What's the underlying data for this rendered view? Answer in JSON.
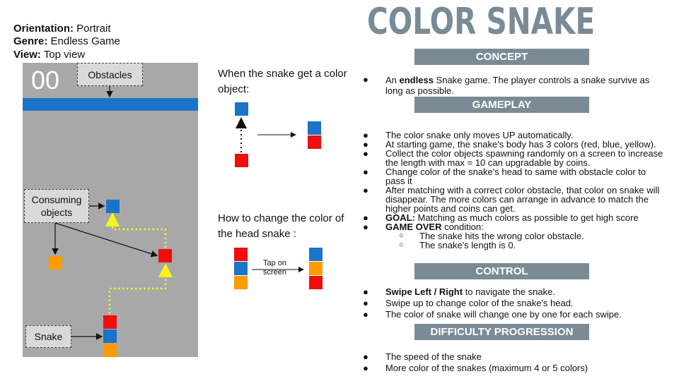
{
  "info": {
    "orientation_label": "Orientation:",
    "orientation_value": "Portrait",
    "genre_label": "Genre:",
    "genre_value": "Endless Game",
    "view_label": "View:",
    "view_value": "Top view"
  },
  "game": {
    "score": "00",
    "obstacles_label": "Obstacles",
    "consuming_label": "Consuming objects",
    "snake_label": "Snake"
  },
  "middle": {
    "color_object_text": "When the snake get a color object:",
    "change_color_text": "How to change the color of the head snake :",
    "tap_label": "Tap on screen"
  },
  "title": "COLOR SNAKE",
  "sections": {
    "concept": {
      "heading": "CONCEPT",
      "b1_pre": "An ",
      "b1_bold": "endless",
      "b1_post": " Snake game. The player controls a snake survive as long as possible."
    },
    "gameplay": {
      "heading": "GAMEPLAY",
      "i1": "The color snake only moves UP automatically.",
      "i2": "At starting game, the snake's body has 3 colors (red, blue, yellow).",
      "i3": "Collect the color objects spawning randomly on a screen to increase the length with max = 10 can upgradable by coins.",
      "i4": "Change color of  the snake's head to same with obstacle color to pass it",
      "i5": "After matching with a correct color obstacle, that color on snake will disappear. The more colors can arrange in advance to match the higher points and coins can get.",
      "i6_bold": "GOAL:",
      "i6_text": " Matching as much colors as possible to get high score",
      "i7_bold": "GAME OVER",
      "i7_text": " condition:",
      "s1": "The snake hits the wrong color obstacle.",
      "s2": "The snake's length is 0."
    },
    "control": {
      "heading": "CONTROL",
      "i1_bold": "Swipe Left / Right",
      "i1_text": " to navigate the snake.",
      "i2": "Swipe up to change color of the snake's head.",
      "i3": "The color of snake will change one by one for each swipe."
    },
    "difficulty": {
      "heading": "DIFFICULTY PROGRESSION",
      "i1": "The speed of the snake",
      "i2": "More color of the snakes (maximum 4 or 5 colors)"
    }
  },
  "colors": {
    "red": "#f10d0d",
    "blue": "#1a74c9",
    "orange": "#ff9a00",
    "gray_panel": "#a8a8a8",
    "section_bar": "#7a8b95",
    "path_dots": "#f5f51c"
  }
}
